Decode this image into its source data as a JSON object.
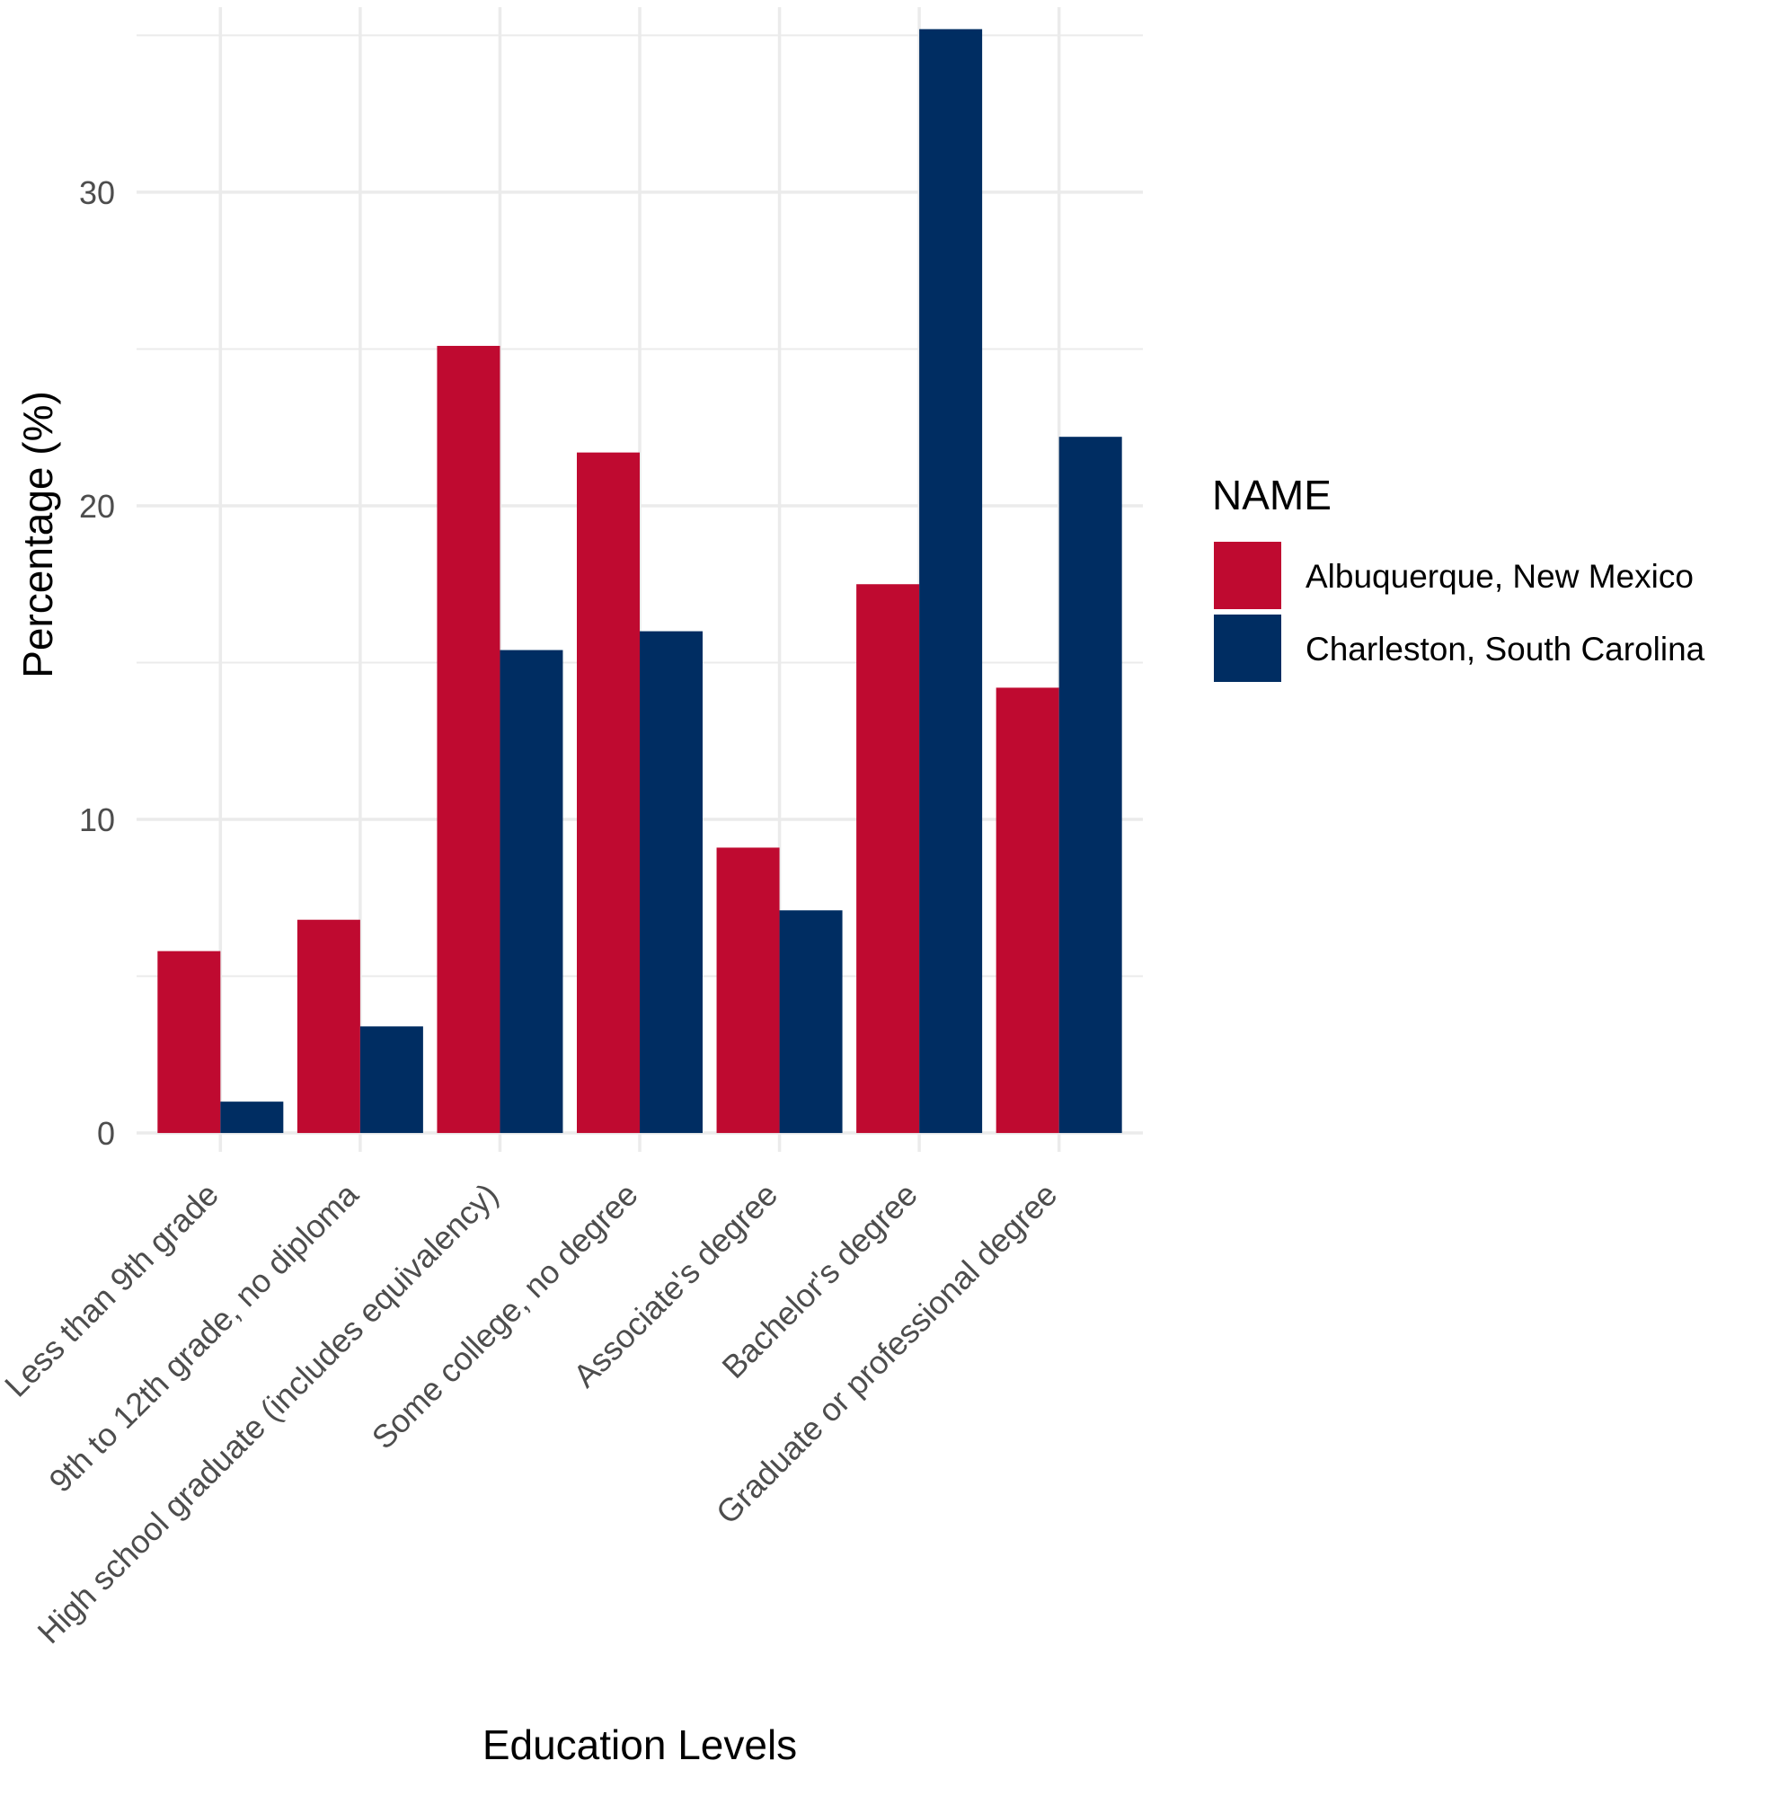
{
  "chart_data": {
    "type": "bar",
    "title": "",
    "xlabel": "Education Levels",
    "ylabel": "Percentage (%)",
    "ylim": [
      -0.6,
      35.9
    ],
    "yticks": [
      0,
      10,
      20,
      30
    ],
    "grid": true,
    "legend": {
      "title": "NAME",
      "position": "right"
    },
    "categories": [
      "Less than 9th grade",
      "9th to 12th grade, no diploma",
      "High school graduate (includes equivalency)",
      "Some college, no degree",
      "Associate's degree",
      "Bachelor's degree",
      "Graduate or professional degree"
    ],
    "series": [
      {
        "name": "Albuquerque, New Mexico",
        "color": "#BF0A30",
        "values": [
          5.8,
          6.8,
          25.1,
          21.7,
          9.1,
          17.5,
          14.2
        ]
      },
      {
        "name": "Charleston, South Carolina",
        "color": "#002D62",
        "values": [
          1.0,
          3.4,
          15.4,
          16.0,
          7.1,
          35.2,
          22.2
        ]
      }
    ]
  }
}
